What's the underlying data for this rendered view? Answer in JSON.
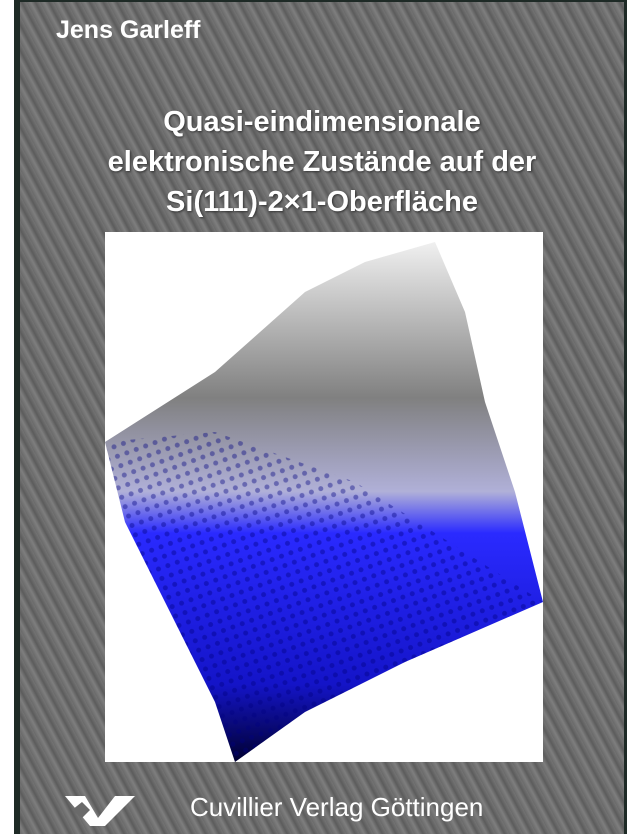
{
  "cover": {
    "author": "Jens Garleff",
    "title_lines": [
      "Quasi-eindimensionale",
      "elektronische Zustände auf der",
      "Si(111)-2×1-Oberfläche"
    ],
    "publisher": "Cuvillier Verlag Göttingen"
  }
}
